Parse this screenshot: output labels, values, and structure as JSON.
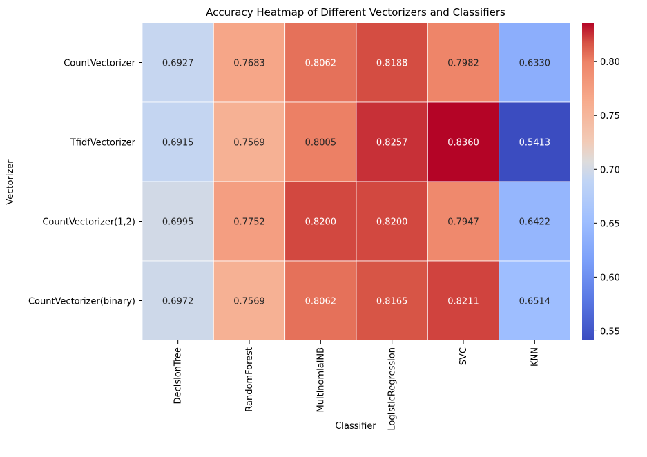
{
  "chart_data": {
    "type": "heatmap",
    "title": "Accuracy Heatmap of Different Vectorizers and Classifiers",
    "xlabel": "Classifier",
    "ylabel": "Vectorizer",
    "columns": [
      "DecisionTree",
      "RandomForest",
      "MultinomialNB",
      "LogisticRegression",
      "SVC",
      "KNN"
    ],
    "rows": [
      "CountVectorizer",
      "TfidfVectorizer",
      "CountVectorizer(1,2)",
      "CountVectorizer(binary)"
    ],
    "values": [
      [
        0.6927,
        0.7683,
        0.8062,
        0.8188,
        0.7982,
        0.633
      ],
      [
        0.6915,
        0.7569,
        0.8005,
        0.8257,
        0.836,
        0.5413
      ],
      [
        0.6995,
        0.7752,
        0.82,
        0.82,
        0.7947,
        0.6422
      ],
      [
        0.6972,
        0.7569,
        0.8062,
        0.8165,
        0.8211,
        0.6514
      ]
    ],
    "value_labels": [
      [
        "0.6927",
        "0.7683",
        "0.8062",
        "0.8188",
        "0.7982",
        "0.6330"
      ],
      [
        "0.6915",
        "0.7569",
        "0.8005",
        "0.8257",
        "0.8360",
        "0.5413"
      ],
      [
        "0.6995",
        "0.7752",
        "0.8200",
        "0.8200",
        "0.7947",
        "0.6422"
      ],
      [
        "0.6972",
        "0.7569",
        "0.8062",
        "0.8165",
        "0.8211",
        "0.6514"
      ]
    ],
    "colormap": "coolwarm",
    "color_range": [
      0.5413,
      0.836
    ],
    "colorbar_ticks": [
      "0.55",
      "0.60",
      "0.65",
      "0.70",
      "0.75",
      "0.80"
    ],
    "colorbar_tick_values": [
      0.55,
      0.6,
      0.65,
      0.7,
      0.75,
      0.8
    ],
    "grid": false,
    "cell_separator_color": "#ffffff",
    "legend_placement": "right (colorbar)"
  }
}
